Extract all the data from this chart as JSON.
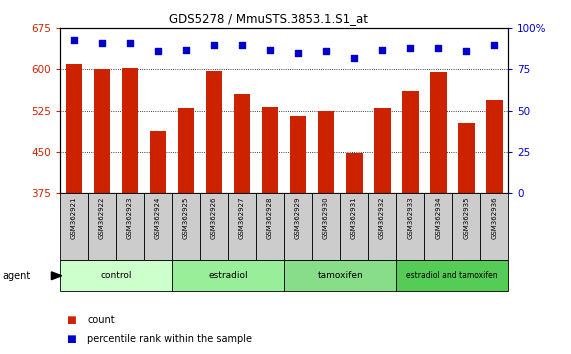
{
  "title": "GDS5278 / MmuSTS.3853.1.S1_at",
  "samples": [
    "GSM362921",
    "GSM362922",
    "GSM362923",
    "GSM362924",
    "GSM362925",
    "GSM362926",
    "GSM362927",
    "GSM362928",
    "GSM362929",
    "GSM362930",
    "GSM362931",
    "GSM362932",
    "GSM362933",
    "GSM362934",
    "GSM362935",
    "GSM362936"
  ],
  "counts": [
    610,
    600,
    603,
    488,
    530,
    598,
    555,
    532,
    516,
    524,
    447,
    530,
    560,
    595,
    502,
    545
  ],
  "percentiles": [
    93,
    91,
    91,
    86,
    87,
    90,
    90,
    87,
    85,
    86,
    82,
    87,
    88,
    88,
    86,
    90
  ],
  "groups": [
    {
      "label": "control",
      "start": 0,
      "end": 4,
      "color": "#ccffcc"
    },
    {
      "label": "estradiol",
      "start": 4,
      "end": 8,
      "color": "#99ee99"
    },
    {
      "label": "tamoxifen",
      "start": 8,
      "end": 12,
      "color": "#88dd88"
    },
    {
      "label": "estradiol and tamoxifen",
      "start": 12,
      "end": 16,
      "color": "#55cc55"
    }
  ],
  "ylim_left": [
    375,
    675
  ],
  "yticks_left": [
    375,
    450,
    525,
    600,
    675
  ],
  "ylim_right": [
    0,
    100
  ],
  "yticks_right": [
    0,
    25,
    50,
    75,
    100
  ],
  "bar_color": "#cc2200",
  "dot_color": "#0000cc",
  "bar_width": 0.6,
  "agent_label": "agent",
  "legend_count": "count",
  "legend_percentile": "percentile rank within the sample",
  "background_color": "#ffffff",
  "plot_bg": "#ffffff",
  "sample_box_color": "#cccccc"
}
